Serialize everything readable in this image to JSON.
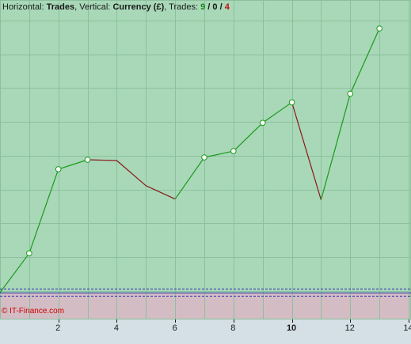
{
  "header": {
    "horizontal_label": "Horizontal:",
    "horizontal_value": "Trades",
    "vertical_label": "Vertical:",
    "vertical_value": "Currency (£)",
    "trades_label": "Trades:",
    "wins": "9",
    "sep1": "/",
    "even": "0",
    "sep2": "/",
    "losses": "4"
  },
  "copyright": "© IT-Finance.com",
  "colors": {
    "profit_area": "#a8d8b8",
    "loss_area": "#d4bcc4",
    "grid": "#8cc09c",
    "gain_line": "#1a9a1a",
    "loss_line": "#8a1a1a",
    "zero_line": "#2a2ab0",
    "axis_bg": "#d4e0e6",
    "axis_text": "#1a1a1a"
  },
  "chart_data": {
    "type": "line",
    "x": [
      0,
      1,
      2,
      3,
      4,
      5,
      6,
      7,
      8,
      9,
      10,
      11,
      12,
      13
    ],
    "y": [
      0,
      50,
      157,
      169,
      168,
      136,
      119,
      172,
      180,
      216,
      242,
      118,
      253,
      336
    ],
    "outcome": [
      "start",
      "win",
      "win",
      "win",
      "loss",
      "loss",
      "loss",
      "win",
      "win",
      "win",
      "win",
      "loss",
      "win",
      "win"
    ],
    "xlabel": "Trades",
    "ylabel": "Currency (£)",
    "xlim": [
      0,
      14
    ],
    "ylim": [
      -30,
      372
    ],
    "x_ticks": [
      2,
      4,
      6,
      8,
      10,
      12,
      14
    ],
    "x_tick_labels": [
      "2",
      "4",
      "6",
      "8",
      "10",
      "12",
      "14"
    ],
    "bold_ticks": [
      10
    ],
    "grid": true
  }
}
